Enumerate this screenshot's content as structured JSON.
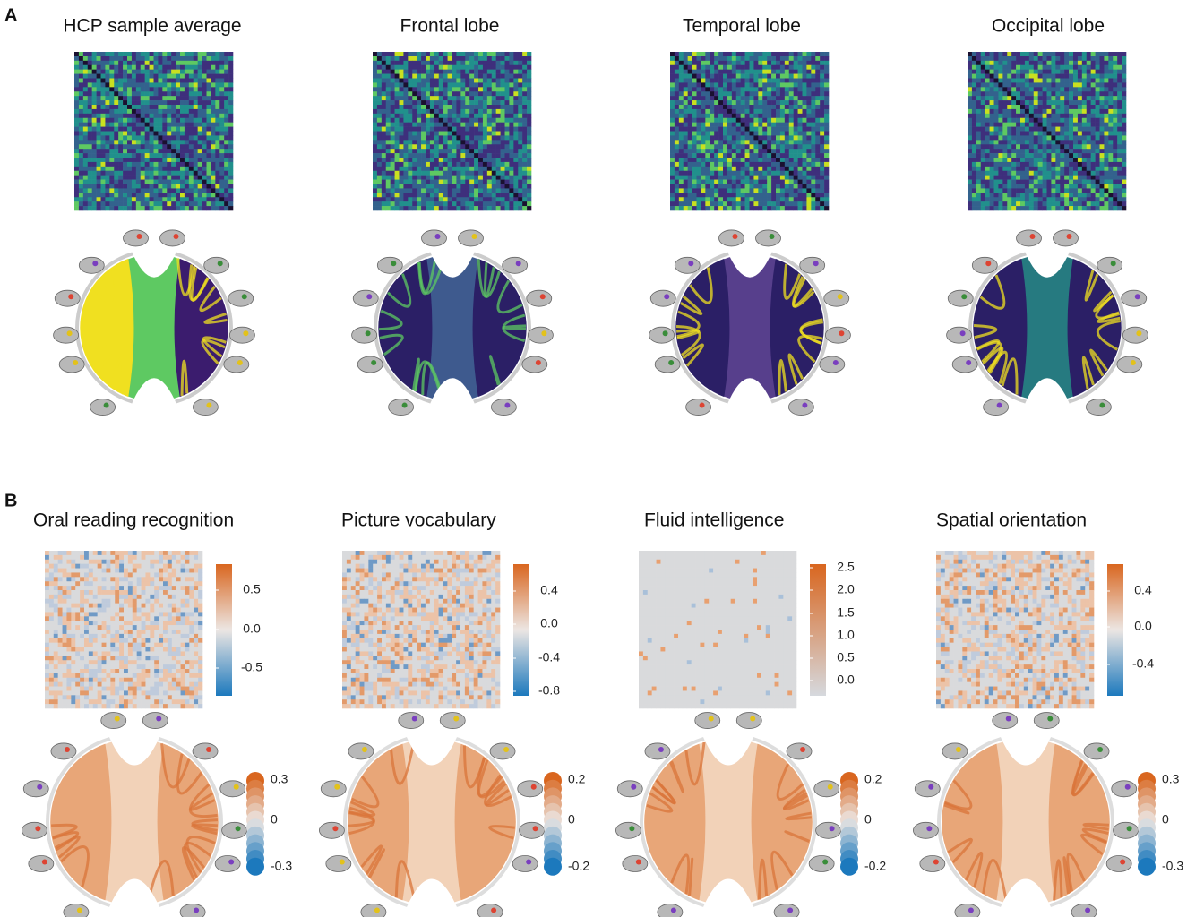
{
  "panel_a": {
    "label": "A",
    "panels": [
      {
        "title": "HCP sample average"
      },
      {
        "title": "Frontal lobe"
      },
      {
        "title": "Temporal lobe"
      },
      {
        "title": "Occipital lobe"
      }
    ]
  },
  "panel_b": {
    "label": "B",
    "panels": [
      {
        "title": "Oral reading recognition",
        "matrix_colorbar": [
          "0.5",
          "0.0",
          "-0.5"
        ],
        "chord_colorbar": [
          "0.3",
          "0",
          "-0.3"
        ]
      },
      {
        "title": "Picture vocabulary",
        "matrix_colorbar": [
          "0.4",
          "0.0",
          "-0.4",
          "-0.8"
        ],
        "chord_colorbar": [
          "0.2",
          "0",
          "-0.2"
        ]
      },
      {
        "title": "Fluid intelligence",
        "matrix_colorbar": [
          "2.5",
          "2.0",
          "1.5",
          "1.0",
          "0.5",
          "0.0"
        ],
        "chord_colorbar": [
          "0.2",
          "0",
          "-0.2"
        ]
      },
      {
        "title": "Spatial orientation",
        "matrix_colorbar": [
          "0.4",
          "0.0",
          "-0.4"
        ],
        "chord_colorbar": [
          "0.3",
          "0",
          "-0.3"
        ]
      }
    ]
  }
}
